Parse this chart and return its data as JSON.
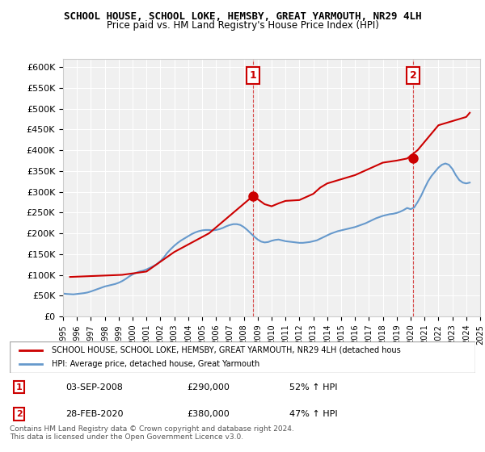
{
  "title": "SCHOOL HOUSE, SCHOOL LOKE, HEMSBY, GREAT YARMOUTH, NR29 4LH",
  "subtitle": "Price paid vs. HM Land Registry's House Price Index (HPI)",
  "ylabel": "",
  "ylim": [
    0,
    620000
  ],
  "yticks": [
    0,
    50000,
    100000,
    150000,
    200000,
    250000,
    300000,
    350000,
    400000,
    450000,
    500000,
    550000,
    600000
  ],
  "ytick_labels": [
    "£0",
    "£50K",
    "£100K",
    "£150K",
    "£200K",
    "£250K",
    "£300K",
    "£350K",
    "£400K",
    "£450K",
    "£500K",
    "£550K",
    "£600K"
  ],
  "background_color": "#ffffff",
  "plot_bg_color": "#f0f0f0",
  "grid_color": "#ffffff",
  "legend_label_red": "SCHOOL HOUSE, SCHOOL LOKE, HEMSBY, GREAT YARMOUTH, NR29 4LH (detached hous",
  "legend_label_blue": "HPI: Average price, detached house, Great Yarmouth",
  "red_color": "#cc0000",
  "blue_color": "#6699cc",
  "annotation1_label": "1",
  "annotation1_date": "03-SEP-2008",
  "annotation1_price": "£290,000",
  "annotation1_hpi": "52% ↑ HPI",
  "annotation2_label": "2",
  "annotation2_date": "28-FEB-2020",
  "annotation2_price": "£380,000",
  "annotation2_hpi": "47% ↑ HPI",
  "footnote": "Contains HM Land Registry data © Crown copyright and database right 2024.\nThis data is licensed under the Open Government Licence v3.0.",
  "hpi_years": [
    1995.0,
    1995.25,
    1995.5,
    1995.75,
    1996.0,
    1996.25,
    1996.5,
    1996.75,
    1997.0,
    1997.25,
    1997.5,
    1997.75,
    1998.0,
    1998.25,
    1998.5,
    1998.75,
    1999.0,
    1999.25,
    1999.5,
    1999.75,
    2000.0,
    2000.25,
    2000.5,
    2000.75,
    2001.0,
    2001.25,
    2001.5,
    2001.75,
    2002.0,
    2002.25,
    2002.5,
    2002.75,
    2003.0,
    2003.25,
    2003.5,
    2003.75,
    2004.0,
    2004.25,
    2004.5,
    2004.75,
    2005.0,
    2005.25,
    2005.5,
    2005.75,
    2006.0,
    2006.25,
    2006.5,
    2006.75,
    2007.0,
    2007.25,
    2007.5,
    2007.75,
    2008.0,
    2008.25,
    2008.5,
    2008.75,
    2009.0,
    2009.25,
    2009.5,
    2009.75,
    2010.0,
    2010.25,
    2010.5,
    2010.75,
    2011.0,
    2011.25,
    2011.5,
    2011.75,
    2012.0,
    2012.25,
    2012.5,
    2012.75,
    2013.0,
    2013.25,
    2013.5,
    2013.75,
    2014.0,
    2014.25,
    2014.5,
    2014.75,
    2015.0,
    2015.25,
    2015.5,
    2015.75,
    2016.0,
    2016.25,
    2016.5,
    2016.75,
    2017.0,
    2017.25,
    2017.5,
    2017.75,
    2018.0,
    2018.25,
    2018.5,
    2018.75,
    2019.0,
    2019.25,
    2019.5,
    2019.75,
    2020.0,
    2020.25,
    2020.5,
    2020.75,
    2021.0,
    2021.25,
    2021.5,
    2021.75,
    2022.0,
    2022.25,
    2022.5,
    2022.75,
    2023.0,
    2023.25,
    2023.5,
    2023.75,
    2024.0,
    2024.25
  ],
  "hpi_values": [
    55000,
    54000,
    53500,
    53000,
    54000,
    55000,
    56000,
    57500,
    60000,
    63000,
    66000,
    69000,
    72000,
    74000,
    76000,
    78000,
    81000,
    85000,
    90000,
    96000,
    101000,
    105000,
    108000,
    110000,
    113000,
    117000,
    121000,
    126000,
    133000,
    142000,
    153000,
    162000,
    170000,
    177000,
    183000,
    188000,
    193000,
    198000,
    202000,
    205000,
    207000,
    208000,
    208000,
    207000,
    208000,
    210000,
    213000,
    217000,
    220000,
    222000,
    222000,
    220000,
    215000,
    208000,
    200000,
    192000,
    185000,
    180000,
    178000,
    179000,
    182000,
    184000,
    185000,
    183000,
    181000,
    180000,
    179000,
    178000,
    177000,
    177000,
    178000,
    179000,
    181000,
    183000,
    187000,
    191000,
    195000,
    199000,
    202000,
    205000,
    207000,
    209000,
    211000,
    213000,
    215000,
    218000,
    221000,
    224000,
    228000,
    232000,
    236000,
    239000,
    242000,
    244000,
    246000,
    247000,
    249000,
    252000,
    256000,
    261000,
    258000,
    262000,
    275000,
    290000,
    308000,
    325000,
    338000,
    348000,
    358000,
    365000,
    368000,
    365000,
    355000,
    340000,
    328000,
    322000,
    320000,
    322000
  ],
  "red_years": [
    1995.5,
    1997.0,
    1999.25,
    2001.0,
    2003.0,
    2005.5,
    2008.67,
    2009.5,
    2010.0,
    2010.5,
    2011.0,
    2012.0,
    2013.0,
    2013.5,
    2014.0,
    2015.0,
    2016.0,
    2017.0,
    2018.0,
    2019.0,
    2019.75,
    2020.5,
    2021.0,
    2021.5,
    2022.0,
    2022.5,
    2023.0,
    2023.5,
    2024.0,
    2024.25
  ],
  "red_values": [
    95000,
    97000,
    100000,
    108000,
    155000,
    200000,
    290000,
    270000,
    265000,
    272000,
    278000,
    280000,
    295000,
    310000,
    320000,
    330000,
    340000,
    355000,
    370000,
    375000,
    380000,
    400000,
    420000,
    440000,
    460000,
    465000,
    470000,
    475000,
    480000,
    490000
  ],
  "sale1_x": 2008.67,
  "sale1_y": 290000,
  "sale2_x": 2020.17,
  "sale2_y": 380000,
  "xmin": 1995,
  "xmax": 2025
}
